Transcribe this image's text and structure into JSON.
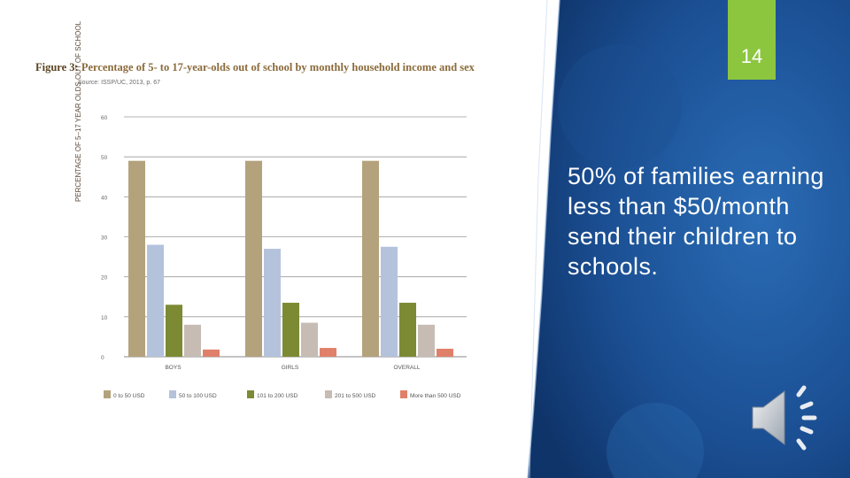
{
  "slide": {
    "page_number": "14",
    "body_text": "50% of families earning less than $50/month send their children to schools."
  },
  "figure": {
    "title_lead": "Figure 3:",
    "title_rest": "Percentage of 5- to 17-year-olds out of school by monthly household income and sex",
    "source": "Source: ISSP/UC, 2013, p. 67"
  },
  "chart_data": {
    "type": "bar",
    "title": "Percentage of 5- to 17-year-olds out of school by monthly household income and sex",
    "ylabel": "PERCENTAGE OF 5–17 YEAR OLDS OUT OF SCHOOL",
    "xlabel": "",
    "ylim": [
      0,
      60
    ],
    "yticks": [
      "0",
      "10",
      "20",
      "30",
      "40",
      "50",
      "60"
    ],
    "grid": true,
    "legend_position": "bottom",
    "categories": [
      "BOYS",
      "GIRLS",
      "OVERALL"
    ],
    "series": [
      {
        "name": "0 to 50 USD",
        "color": "#b4a27c",
        "values": [
          49,
          49,
          49
        ]
      },
      {
        "name": "50 to 100 USD",
        "color": "#b4c2dc",
        "values": [
          28,
          27,
          27.5
        ]
      },
      {
        "name": "101 to 200 USD",
        "color": "#7c8a34",
        "values": [
          13,
          13.5,
          13.5
        ]
      },
      {
        "name": "201 to 500 USD",
        "color": "#c6bcb4",
        "values": [
          8,
          8.5,
          8
        ]
      },
      {
        "name": "More than 500 USD",
        "color": "#e0806a",
        "values": [
          1.8,
          2.2,
          2
        ]
      }
    ]
  },
  "colors": {
    "panel_blue": "#1f5fa5",
    "panel_dark": "#123e7a",
    "page_num_green": "#8cc63f"
  },
  "icons": {
    "audio": "speaker-icon"
  }
}
